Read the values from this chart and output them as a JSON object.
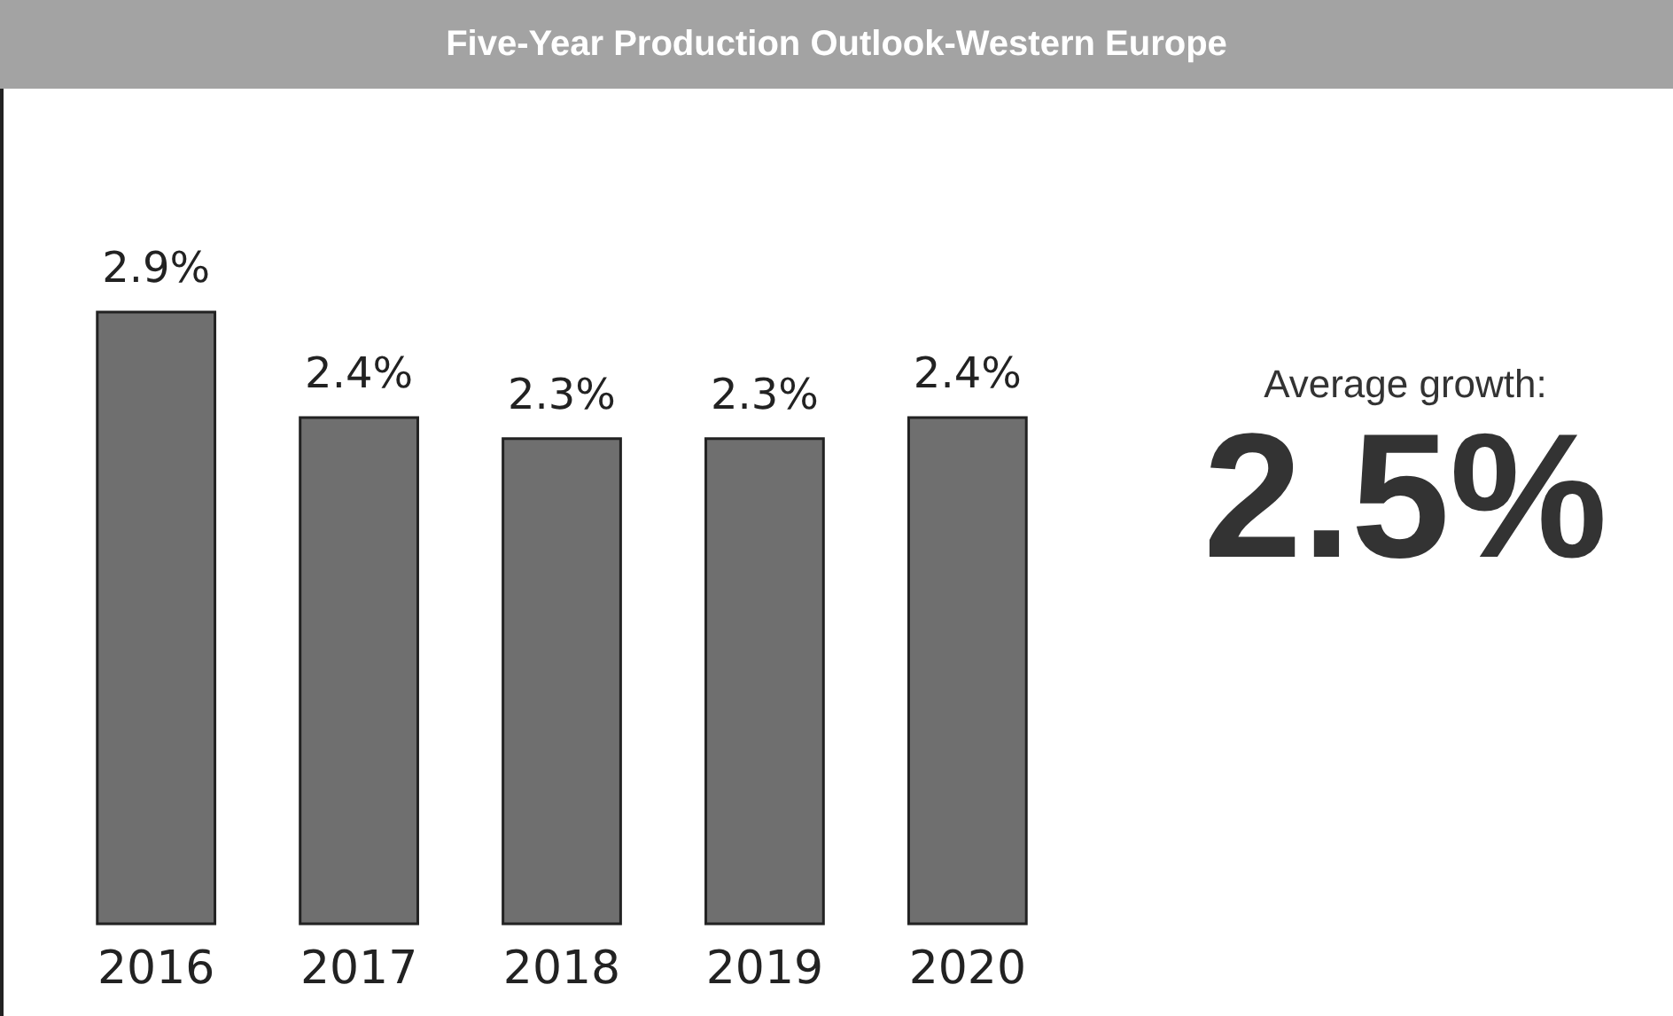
{
  "chart_data": {
    "type": "bar",
    "title": "Five-Year Production Outlook-Western Europe",
    "categories": [
      "2016",
      "2017",
      "2018",
      "2019",
      "2020"
    ],
    "values": [
      2.9,
      2.4,
      2.3,
      2.3,
      2.4
    ],
    "value_labels": [
      "2.9%",
      "2.4%",
      "2.3%",
      "2.3%",
      "2.4%"
    ],
    "color": "#6f6f6f",
    "annotations": [
      "Average growth:",
      "2.5%"
    ]
  }
}
